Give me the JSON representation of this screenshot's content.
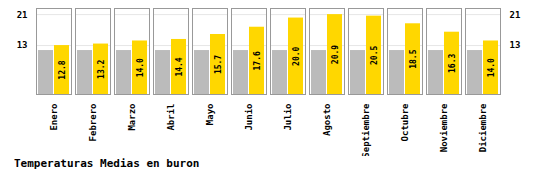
{
  "chart_data": {
    "type": "bar",
    "title": "Temperaturas Medias en buron",
    "categories": [
      "Enero",
      "Febrero",
      "Marzo",
      "Abril",
      "Mayo",
      "Junio",
      "Julio",
      "Agosto",
      "Septiembre",
      "Octubre",
      "Noviembre",
      "Diciembre"
    ],
    "series": [
      {
        "color": "#BBBBBB",
        "values": [
          11.5,
          11.5,
          11.5,
          11.5,
          11.5,
          11.5,
          11.5,
          11.5,
          11.5,
          11.5,
          11.5,
          11.5
        ]
      },
      {
        "color": "#FFD700",
        "values": [
          12.8,
          13.2,
          14.0,
          14.4,
          15.7,
          17.6,
          20.0,
          20.9,
          20.5,
          18.5,
          16.3,
          14.0
        ],
        "value_labels": [
          "12.8",
          "13.2",
          "14.0",
          "14.4",
          "15.7",
          "17.6",
          "20.0",
          "20.9",
          "20.5",
          "18.5",
          "16.3",
          "14.0"
        ],
        "data_labels": true
      }
    ],
    "ylim": [
      0,
      22.5
    ],
    "yticks": [
      12.8,
      20.9
    ],
    "grid": true
  }
}
